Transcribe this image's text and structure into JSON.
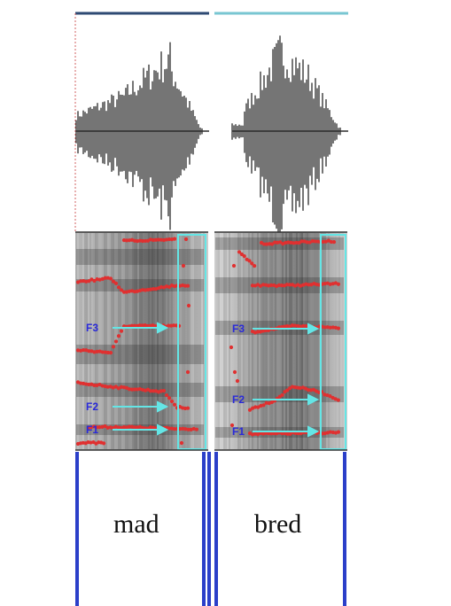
{
  "words": {
    "left": "mad",
    "right": "bred"
  },
  "formant_labels": {
    "left": [
      "F3",
      "F2",
      "F1"
    ],
    "right": [
      "F3",
      "F2",
      "F1"
    ]
  },
  "colors": {
    "waveform": "#2b2b2b",
    "formant_track": "#e03030",
    "highlight_box": "#64e6e6",
    "segment_line": "#2b3fc9",
    "label_text": "#2a2ad8",
    "left_top_bar": "#2e4a73",
    "right_top_bar": "#78c6d2"
  }
}
